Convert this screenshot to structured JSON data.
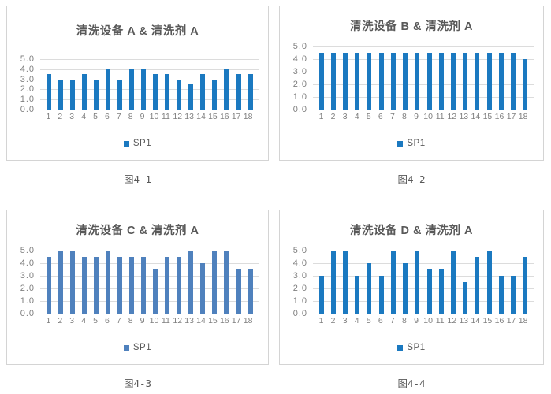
{
  "page": {
    "background": "#ffffff"
  },
  "colors": {
    "primary_bar_blue": "#1b79c0",
    "muted_bar_blue": "#4f81bd",
    "gridline": "#dcdcdc",
    "axis_text": "#7f7f7f",
    "title_text": "#595959",
    "panel_border": "#d4d4d4"
  },
  "chart_data": [
    {
      "type": "bar",
      "title": "清洗设备 A & 清洗剂 A",
      "caption": "图4-1",
      "legend": [
        "SP1"
      ],
      "legend_position": "bottom",
      "categories": [
        "1",
        "2",
        "3",
        "4",
        "5",
        "6",
        "7",
        "8",
        "9",
        "10",
        "11",
        "12",
        "13",
        "14",
        "15",
        "16",
        "17",
        "18"
      ],
      "series": [
        {
          "name": "SP1",
          "values": [
            3.5,
            3.0,
            3.0,
            3.5,
            3.0,
            4.0,
            3.0,
            4.0,
            4.0,
            3.5,
            3.5,
            3.0,
            2.5,
            3.5,
            3.0,
            4.0,
            3.5,
            3.5
          ]
        }
      ],
      "ylim": [
        0,
        5
      ],
      "yticks": [
        "5.0",
        "4.0",
        "3.0",
        "2.0",
        "1.0",
        "0.0"
      ],
      "grid": true,
      "bar_color": "#1b79c0"
    },
    {
      "type": "bar",
      "title": "清洗设备 B & 清洗剂 A",
      "caption": "图4-2",
      "legend": [
        "SP1"
      ],
      "legend_position": "bottom",
      "categories": [
        "1",
        "2",
        "3",
        "4",
        "5",
        "6",
        "7",
        "8",
        "9",
        "10",
        "11",
        "12",
        "13",
        "14",
        "15",
        "16",
        "17",
        "18"
      ],
      "series": [
        {
          "name": "SP1",
          "values": [
            4.5,
            4.5,
            4.5,
            4.5,
            4.5,
            4.5,
            4.5,
            4.5,
            4.5,
            4.5,
            4.5,
            4.5,
            4.5,
            4.5,
            4.5,
            4.5,
            4.5,
            4.0
          ]
        }
      ],
      "ylim": [
        0,
        5
      ],
      "yticks": [
        "5.0",
        "4.0",
        "3.0",
        "2.0",
        "1.0",
        "0.0"
      ],
      "grid": true,
      "bar_color": "#1b79c0"
    },
    {
      "type": "bar",
      "title": "清洗设备 C & 清洗剂 A",
      "caption": "图4-3",
      "legend": [
        "SP1"
      ],
      "legend_position": "bottom",
      "categories": [
        "1",
        "2",
        "3",
        "4",
        "5",
        "6",
        "7",
        "8",
        "9",
        "10",
        "11",
        "12",
        "13",
        "14",
        "15",
        "16",
        "17",
        "18"
      ],
      "series": [
        {
          "name": "SP1",
          "values": [
            4.5,
            5.0,
            5.0,
            4.5,
            4.5,
            5.0,
            4.5,
            4.5,
            4.5,
            3.5,
            4.5,
            4.5,
            5.0,
            4.0,
            5.0,
            5.0,
            3.5,
            3.5
          ]
        }
      ],
      "ylim": [
        0,
        5
      ],
      "yticks": [
        "5.0",
        "4.0",
        "3.0",
        "2.0",
        "1.0",
        "0.0"
      ],
      "grid": true,
      "bar_color": "#4f81bd"
    },
    {
      "type": "bar",
      "title": "清洗设备 D & 清洗剂 A",
      "caption": "图4-4",
      "legend": [
        "SP1"
      ],
      "legend_position": "bottom",
      "categories": [
        "1",
        "2",
        "3",
        "4",
        "5",
        "6",
        "7",
        "8",
        "9",
        "10",
        "11",
        "12",
        "13",
        "14",
        "15",
        "16",
        "17",
        "18"
      ],
      "series": [
        {
          "name": "SP1",
          "values": [
            3.0,
            5.0,
            5.0,
            3.0,
            4.0,
            3.0,
            5.0,
            4.0,
            5.0,
            3.5,
            3.5,
            5.0,
            2.5,
            4.5,
            5.0,
            3.0,
            3.0,
            4.5
          ]
        }
      ],
      "ylim": [
        0,
        5
      ],
      "yticks": [
        "5.0",
        "4.0",
        "3.0",
        "2.0",
        "1.0",
        "0.0"
      ],
      "grid": true,
      "bar_color": "#1b79c0"
    }
  ]
}
